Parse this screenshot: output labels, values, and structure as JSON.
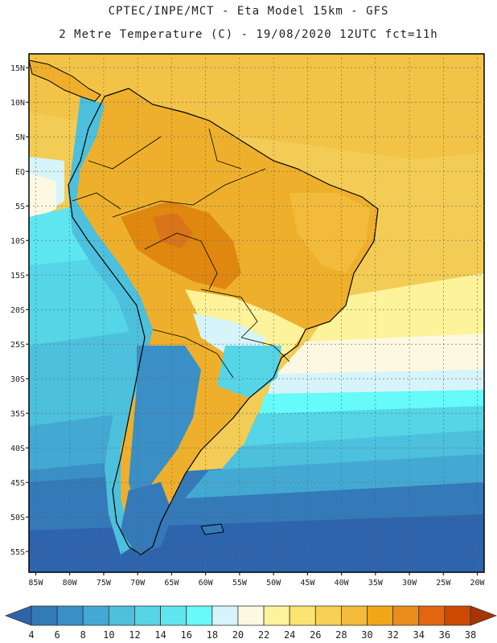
{
  "header": {
    "line1": "CPTEC/INPE/MCT -  Eta Model 15km - GFS",
    "line2": "2 Metre Temperature (C) - 19/08/2020 12UTC fct=11h"
  },
  "map": {
    "lon_range": [
      -86,
      -19
    ],
    "lat_range": [
      -58,
      17
    ],
    "lat_ticks": [
      "15N",
      "10N",
      "5N",
      "EQ",
      "5S",
      "10S",
      "15S",
      "20S",
      "25S",
      "30S",
      "35S",
      "40S",
      "45S",
      "50S",
      "55S"
    ],
    "lat_values": [
      15,
      10,
      5,
      0,
      -5,
      -10,
      -15,
      -20,
      -25,
      -30,
      -35,
      -40,
      -45,
      -50,
      -55
    ],
    "lon_ticks": [
      "85W",
      "80W",
      "75W",
      "70W",
      "65W",
      "60W",
      "55W",
      "50W",
      "45W",
      "40W",
      "35W",
      "30W",
      "25W",
      "20W"
    ],
    "lon_values": [
      -85,
      -80,
      -75,
      -70,
      -65,
      -60,
      -55,
      -50,
      -45,
      -40,
      -35,
      -30,
      -25,
      -20
    ],
    "ocean_color": "#f3cc55",
    "continent_color": "#eeb02c"
  },
  "legend": {
    "labels": [
      "4",
      "6",
      "8",
      "10",
      "12",
      "14",
      "16",
      "18",
      "20",
      "22",
      "24",
      "26",
      "28",
      "30",
      "32",
      "34",
      "36",
      "38"
    ],
    "colors": [
      "#2e64ac",
      "#3479b8",
      "#3a8fc6",
      "#44a9d2",
      "#4cc0dc",
      "#55d5e6",
      "#5ee6f0",
      "#66fafa",
      "#d6f4fa",
      "#fdf8e2",
      "#fdf39a",
      "#fbe470",
      "#f7d054",
      "#f2bb3c",
      "#f0a616",
      "#eb8c1e",
      "#e26610",
      "#cc4a04",
      "#a83402"
    ]
  }
}
